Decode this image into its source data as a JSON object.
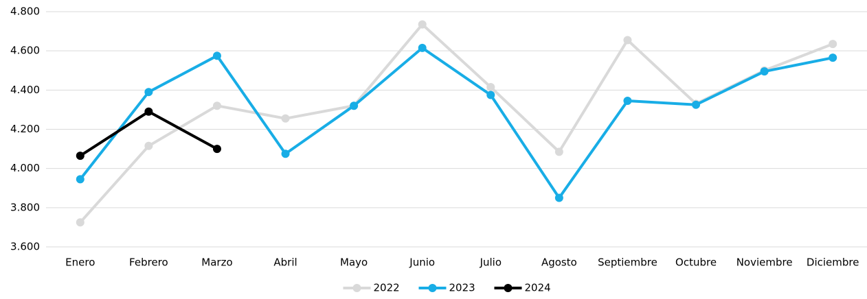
{
  "chart_data": {
    "type": "line",
    "categories": [
      "Enero",
      "Febrero",
      "Marzo",
      "Abril",
      "Mayo",
      "Junio",
      "Julio",
      "Agosto",
      "Septiembre",
      "Octubre",
      "Noviembre",
      "Diciembre"
    ],
    "series": [
      {
        "name": "2022",
        "color": "#d9d9d9",
        "values": [
          3725,
          4115,
          4320,
          4255,
          4320,
          4735,
          4415,
          4085,
          4655,
          4330,
          4500,
          4635
        ]
      },
      {
        "name": "2023",
        "color": "#18ade6",
        "values": [
          3945,
          4390,
          4575,
          4075,
          4320,
          4615,
          4375,
          3850,
          4345,
          4325,
          4495,
          4565
        ]
      },
      {
        "name": "2024",
        "color": "#000000",
        "values": [
          4065,
          4290,
          4100,
          null,
          null,
          null,
          null,
          null,
          null,
          null,
          null,
          null
        ]
      }
    ],
    "ylim": [
      3600,
      4800
    ],
    "yticks": [
      {
        "value": 3600,
        "label": "3.600"
      },
      {
        "value": 3800,
        "label": "3.800"
      },
      {
        "value": 4000,
        "label": "4.000"
      },
      {
        "value": 4200,
        "label": "4.200"
      },
      {
        "value": 4400,
        "label": "4.400"
      },
      {
        "value": 4600,
        "label": "4.600"
      },
      {
        "value": 4800,
        "label": "4.800"
      }
    ],
    "grid": true,
    "legend": "bottom"
  }
}
